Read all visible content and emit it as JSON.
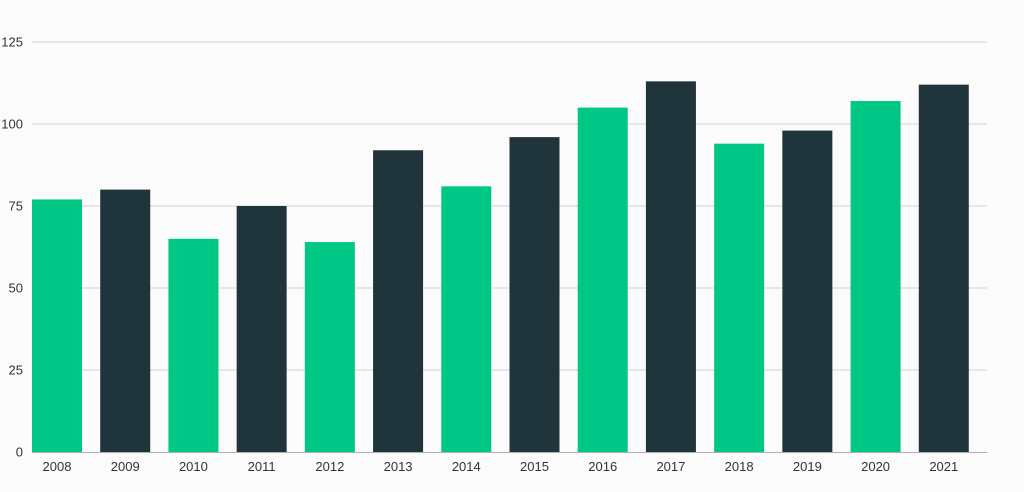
{
  "chart_data": {
    "type": "bar",
    "title": "",
    "xlabel": "",
    "ylabel": "",
    "categories": [
      "2008",
      "2009",
      "2010",
      "2011",
      "2012",
      "2013",
      "2014",
      "2015",
      "2016",
      "2017",
      "2018",
      "2019",
      "2020",
      "2021"
    ],
    "values": [
      77,
      80,
      65,
      75,
      64,
      92,
      81,
      96,
      105,
      113,
      94,
      98,
      107,
      112
    ],
    "ylim": [
      0,
      125
    ],
    "yticks": [
      0,
      25,
      50,
      75,
      100,
      125
    ],
    "ytick_labels": [
      "0",
      "25",
      "50",
      "75",
      "100",
      "125"
    ],
    "grid": true,
    "legend": "none",
    "colors": {
      "primary": "#00c785",
      "secondary": "#20343c"
    },
    "bar_color_sequence": [
      "primary",
      "secondary",
      "primary",
      "secondary",
      "primary",
      "secondary",
      "primary",
      "secondary",
      "primary",
      "secondary",
      "primary",
      "secondary",
      "primary",
      "secondary"
    ]
  }
}
